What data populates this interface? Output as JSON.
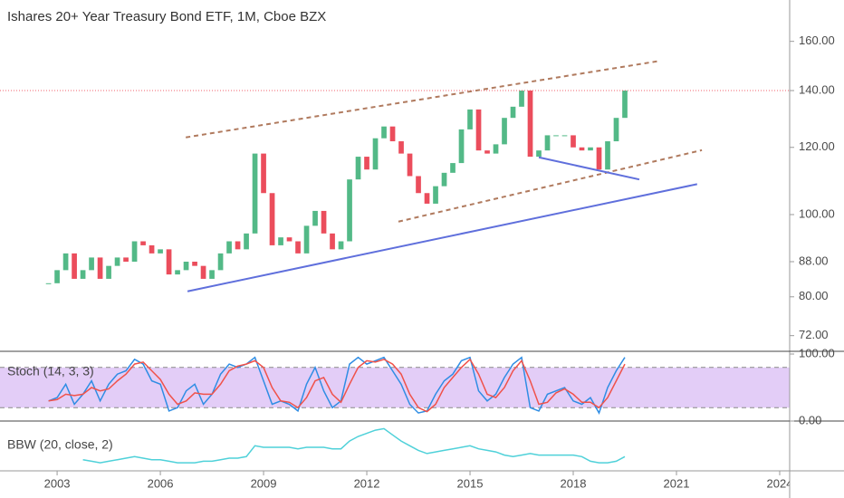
{
  "chart_data": [
    {
      "type": "candlestick",
      "title": "Ishares 20+ Year Treasury Bond ETF, 1M, Cboe BZX",
      "x": [
        2002.75,
        2003,
        2003.25,
        2003.5,
        2003.75,
        2004,
        2004.25,
        2004.5,
        2004.75,
        2005,
        2005.25,
        2005.5,
        2005.75,
        2006,
        2006.25,
        2006.5,
        2006.75,
        2007,
        2007.25,
        2007.5,
        2007.75,
        2008,
        2008.25,
        2008.5,
        2008.75,
        2009,
        2009.25,
        2009.5,
        2009.75,
        2010,
        2010.25,
        2010.5,
        2010.75,
        2011,
        2011.25,
        2011.5,
        2011.75,
        2012,
        2012.25,
        2012.5,
        2012.75,
        2013,
        2013.25,
        2013.5,
        2013.75,
        2014,
        2014.25,
        2014.5,
        2014.75,
        2015,
        2015.25,
        2015.5,
        2015.75,
        2016,
        2016.25,
        2016.5,
        2016.75,
        2017,
        2017.25,
        2017.5,
        2017.75,
        2018,
        2018.25,
        2018.5,
        2018.75,
        2019,
        2019.25,
        2019.5
      ],
      "series": [
        {
          "up_color": "#53b987",
          "down_color": "#eb4d5c",
          "values": [
            83,
            86,
            90,
            84,
            86,
            89,
            84,
            87,
            89,
            88,
            93,
            92,
            90,
            91,
            85,
            86,
            88,
            87,
            84,
            86,
            90,
            93,
            91,
            95,
            118,
            106,
            92,
            94,
            93,
            90,
            97,
            101,
            95,
            91,
            93,
            110,
            117,
            113,
            123,
            127,
            122,
            118,
            111,
            106,
            103,
            108,
            112,
            115,
            126,
            133,
            119,
            118,
            121,
            130,
            134,
            140,
            117,
            119,
            124,
            124,
            124,
            120,
            119,
            120,
            113,
            122,
            130,
            140
          ]
        }
      ],
      "last_price_color": "#f0616e",
      "log_scale": true,
      "xlim": [
        2001.34,
        2024.29
      ],
      "xticks": [
        2003,
        2006,
        2009,
        2012,
        2015,
        2018,
        2021,
        2024
      ],
      "ylim": [
        69,
        179
      ],
      "yticks": [
        {
          "value": 72,
          "label": "72.00"
        },
        {
          "value": 80,
          "label": "80.00"
        },
        {
          "value": 88,
          "label": "88.00"
        },
        {
          "value": 100,
          "label": "100.00"
        },
        {
          "value": 120,
          "label": "120.00"
        },
        {
          "value": 140,
          "label": "140.00"
        },
        {
          "value": 160,
          "label": "160.00"
        }
      ],
      "trendlines": [
        {
          "color": "#b07a5e",
          "dashed": true,
          "x": [
            2006.74,
            2020.5
          ],
          "y": [
            123.3,
            151.7
          ]
        },
        {
          "color": "#b07a5e",
          "dashed": true,
          "x": [
            2012.92,
            2021.74
          ],
          "y": [
            98.1,
            119.1
          ]
        },
        {
          "color": "#5f6fdc",
          "dashed": false,
          "x": [
            2006.79,
            2021.6
          ],
          "y": [
            81.2,
            108.6
          ]
        },
        {
          "color": "#5f6fdc",
          "dashed": false,
          "x": [
            2017.0,
            2019.92
          ],
          "y": [
            116.8,
            110.0
          ]
        }
      ]
    },
    {
      "type": "line",
      "title": "Stoch (14, 3, 3)",
      "ylim": [
        0,
        100
      ],
      "yticks": [
        {
          "value": 0,
          "label": "0.00"
        },
        {
          "value": 100,
          "label": "100.00"
        }
      ],
      "band": [
        20,
        80
      ],
      "band_color": "#e3cdf7",
      "series": [
        {
          "color": "#2f8de4",
          "values": [
            30,
            35,
            55,
            25,
            40,
            60,
            30,
            55,
            70,
            75,
            92,
            85,
            60,
            55,
            15,
            20,
            45,
            55,
            25,
            40,
            70,
            85,
            80,
            85,
            95,
            60,
            25,
            30,
            25,
            15,
            55,
            80,
            45,
            20,
            30,
            85,
            95,
            85,
            90,
            95,
            75,
            55,
            25,
            12,
            15,
            40,
            60,
            70,
            90,
            95,
            45,
            30,
            40,
            65,
            85,
            95,
            20,
            15,
            40,
            45,
            50,
            30,
            25,
            35,
            12,
            50,
            75,
            95
          ]
        },
        {
          "color": "#f0524a",
          "values": [
            30,
            32,
            40,
            38,
            40,
            50,
            45,
            48,
            60,
            70,
            85,
            88,
            75,
            62,
            40,
            25,
            30,
            42,
            40,
            40,
            55,
            75,
            82,
            85,
            90,
            80,
            50,
            30,
            28,
            20,
            35,
            60,
            65,
            40,
            28,
            55,
            80,
            90,
            88,
            92,
            85,
            70,
            40,
            20,
            14,
            25,
            50,
            65,
            80,
            92,
            70,
            40,
            35,
            50,
            75,
            90,
            60,
            25,
            28,
            42,
            48,
            40,
            28,
            28,
            20,
            35,
            60,
            85
          ]
        }
      ]
    },
    {
      "type": "line",
      "title": "BBW (20, close, 2)",
      "ylim": [
        0.02,
        0.3
      ],
      "series": [
        {
          "color": "#4fd1d9",
          "values": [
            null,
            null,
            null,
            null,
            0.08,
            0.07,
            0.06,
            0.07,
            0.08,
            0.09,
            0.1,
            0.09,
            0.08,
            0.08,
            0.07,
            0.06,
            0.06,
            0.06,
            0.07,
            0.07,
            0.08,
            0.09,
            0.09,
            0.1,
            0.17,
            0.16,
            0.16,
            0.16,
            0.16,
            0.15,
            0.16,
            0.16,
            0.16,
            0.15,
            0.15,
            0.2,
            0.23,
            0.25,
            0.27,
            0.28,
            0.24,
            0.2,
            0.17,
            0.14,
            0.12,
            0.13,
            0.14,
            0.15,
            0.16,
            0.17,
            0.15,
            0.14,
            0.13,
            0.11,
            0.1,
            0.11,
            0.12,
            0.11,
            0.11,
            0.11,
            0.11,
            0.11,
            0.1,
            0.07,
            0.06,
            0.06,
            0.07,
            0.1
          ]
        }
      ]
    }
  ]
}
